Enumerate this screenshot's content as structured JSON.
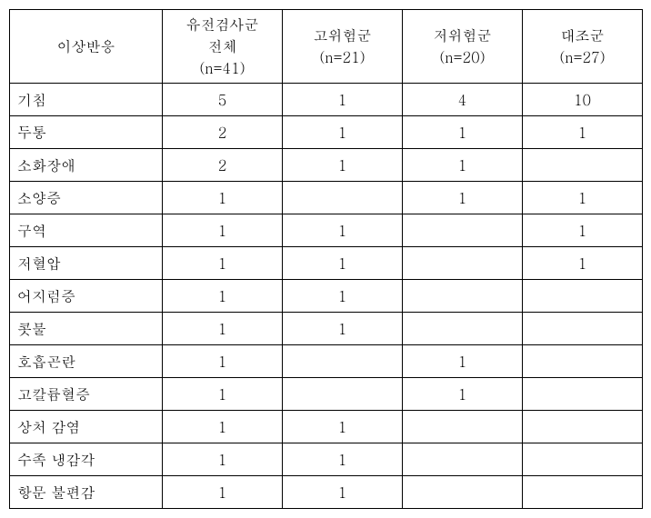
{
  "columns": [
    {
      "label": "이상반응",
      "sub": ""
    },
    {
      "label": "유전검사군\n전체\n(n=41)"
    },
    {
      "label": "고위험군\n(n=21)"
    },
    {
      "label": "저위험군\n(n=20)"
    },
    {
      "label": "대조군\n(n=27)"
    }
  ],
  "rows": [
    {
      "label": "기침",
      "v": [
        "5",
        "1",
        "4",
        "10"
      ]
    },
    {
      "label": "두통",
      "v": [
        "2",
        "1",
        "1",
        "1"
      ]
    },
    {
      "label": "소화장애",
      "v": [
        "2",
        "1",
        "1",
        ""
      ]
    },
    {
      "label": "소양증",
      "v": [
        "1",
        "",
        "1",
        "1"
      ]
    },
    {
      "label": "구역",
      "v": [
        "1",
        "1",
        "",
        "1"
      ]
    },
    {
      "label": "저혈압",
      "v": [
        "1",
        "1",
        "",
        "1"
      ]
    },
    {
      "label": "어지럼증",
      "v": [
        "1",
        "1",
        "",
        ""
      ]
    },
    {
      "label": "콧물",
      "v": [
        "1",
        "1",
        "",
        ""
      ]
    },
    {
      "label": "호흡곤란",
      "v": [
        "1",
        "",
        "1",
        ""
      ]
    },
    {
      "label": "고칼륨혈증",
      "v": [
        "1",
        "",
        "1",
        ""
      ]
    },
    {
      "label": "상처 감염",
      "v": [
        "1",
        "1",
        "",
        ""
      ]
    },
    {
      "label": "수족 냉감각",
      "v": [
        "1",
        "1",
        "",
        ""
      ]
    },
    {
      "label": "항문 불편감",
      "v": [
        "1",
        "1",
        "",
        ""
      ]
    }
  ]
}
